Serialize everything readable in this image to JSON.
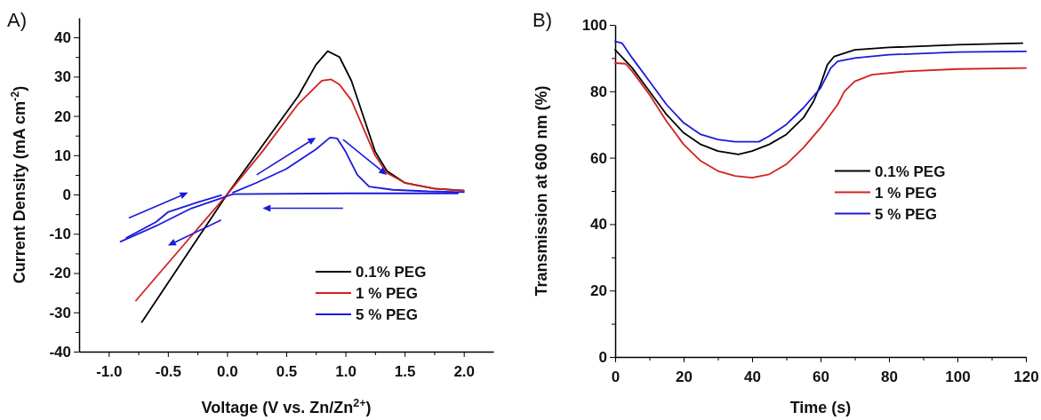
{
  "chart_data": [
    {
      "type": "line",
      "title": "A)",
      "xlabel": "Voltage (V vs. Zn/Zn$^{2+}$)",
      "ylabel": "Current Density (mA cm$^{-2}$)",
      "xlim": [
        -1.25,
        2.25
      ],
      "ylim": [
        -40,
        45
      ],
      "xticks": [
        {
          "value": -1,
          "label": "-1.0"
        },
        {
          "value": -0.75,
          "label": null
        },
        {
          "value": -0.5,
          "label": "-0.5"
        },
        {
          "value": -0.25,
          "label": null
        },
        {
          "value": 0,
          "label": "0.0"
        },
        {
          "value": 0.25,
          "label": null
        },
        {
          "value": 0.5,
          "label": "0.5"
        },
        {
          "value": 0.75,
          "label": null
        },
        {
          "value": 1,
          "label": "1.0"
        },
        {
          "value": 1.25,
          "label": null
        },
        {
          "value": 1.5,
          "label": "1.5"
        },
        {
          "value": 1.75,
          "label": null
        },
        {
          "value": 2,
          "label": "2.0"
        }
      ],
      "yticks": [
        -40,
        {
          "value": -35,
          "label": null
        },
        -30,
        {
          "value": -25,
          "label": null
        },
        -20,
        {
          "value": -15,
          "label": null
        },
        -10,
        {
          "value": -5,
          "label": null
        },
        0,
        {
          "value": 5,
          "label": null
        },
        10,
        {
          "value": 15,
          "label": null
        },
        20,
        {
          "value": 25,
          "label": null
        },
        30,
        {
          "value": 35,
          "label": null
        },
        40
      ],
      "legend": "bottom right",
      "grid": false,
      "line_style": "solid",
      "series": [
        {
          "name": "0.1% PEG",
          "color": "#000000",
          "x": [
            -0.72,
            -0.3,
            0,
            0.3,
            0.6,
            0.75,
            0.85,
            0.95,
            1.05,
            1.15,
            1.25,
            1.35,
            1.5,
            1.75,
            2.0
          ],
          "values": [
            -32.5,
            -13.5,
            0,
            12.5,
            25,
            33,
            36.5,
            35,
            29,
            20,
            11,
            6,
            3,
            1.5,
            1
          ]
        },
        {
          "name": "1 % PEG",
          "color": "#d42020",
          "x": [
            -0.77,
            -0.3,
            0,
            0.3,
            0.6,
            0.8,
            0.88,
            0.95,
            1.05,
            1.15,
            1.25,
            1.35,
            1.5,
            1.75,
            2.0
          ],
          "values": [
            -27,
            -10.5,
            0,
            11,
            23,
            29,
            29.3,
            28,
            24,
            17,
            10,
            5.5,
            3,
            1.5,
            1
          ]
        },
        {
          "name": "5 % PEG",
          "color": "#1a1adb",
          "x": [
            0.05,
            0.25,
            0.5,
            0.75,
            0.87,
            0.93,
            1.0,
            1.1,
            1.2,
            1.4,
            1.7,
            2.0
          ],
          "values": [
            0.5,
            3,
            6.5,
            11.5,
            14.5,
            14.3,
            11,
            5,
            2,
            1.2,
            0.8,
            0.6
          ]
        },
        {
          "color": "#1a1adb",
          "x": [
            1.95,
            1.0,
            0.05,
            -0.3,
            -0.6,
            -0.9
          ],
          "values": [
            0.3,
            0.3,
            0.1,
            -3.5,
            -8,
            -12
          ]
        },
        {
          "color": "#1a1adb",
          "x": [
            -0.85,
            -0.6,
            -0.5,
            -0.25,
            -0.05
          ],
          "values": [
            -11,
            -7,
            -4.5,
            -2,
            -0.2
          ]
        }
      ]
    },
    {
      "type": "line",
      "title": "B)",
      "xlabel": "Time (s)",
      "ylabel": "Transmission at 600 nm (%)",
      "xlim": [
        0,
        120
      ],
      "ylim": [
        0,
        100
      ],
      "xticks": [
        0,
        {
          "value": 10,
          "label": null
        },
        20,
        {
          "value": 30,
          "label": null
        },
        40,
        {
          "value": 50,
          "label": null
        },
        60,
        {
          "value": 70,
          "label": null
        },
        80,
        {
          "value": 90,
          "label": null
        },
        100,
        {
          "value": 110,
          "label": null
        },
        120
      ],
      "yticks": [
        0,
        {
          "value": 10,
          "label": null
        },
        20,
        {
          "value": 30,
          "label": null
        },
        40,
        {
          "value": 50,
          "label": null
        },
        60,
        {
          "value": 70,
          "label": null
        },
        80,
        {
          "value": 90,
          "label": null
        },
        100
      ],
      "legend": "right",
      "grid": false,
      "line_style": "solid",
      "series": [
        {
          "name": "0.1% PEG",
          "color": "#000000",
          "x": [
            0,
            5,
            10,
            15,
            20,
            25,
            30,
            36,
            40,
            45,
            50,
            55,
            58,
            60,
            62,
            64,
            70,
            80,
            100,
            119
          ],
          "values": [
            92.5,
            87,
            80,
            73,
            67.5,
            64,
            62,
            61,
            62,
            64,
            67,
            72,
            77,
            82,
            88,
            90.5,
            92.5,
            93.2,
            94,
            94.5
          ]
        },
        {
          "name": "1 % PEG",
          "color": "#d42020",
          "x": [
            0,
            3,
            5,
            10,
            15,
            20,
            25,
            30,
            35,
            40,
            45,
            50,
            55,
            60,
            65,
            67,
            70,
            75,
            85,
            100,
            120
          ],
          "values": [
            88.5,
            88.3,
            86,
            79,
            71,
            64,
            59,
            56,
            54.5,
            54,
            55,
            58,
            63,
            69,
            76,
            80,
            83,
            85,
            86,
            86.7,
            87
          ]
        },
        {
          "name": "5 % PEG",
          "color": "#1a1adb",
          "x": [
            0,
            2,
            5,
            10,
            15,
            20,
            25,
            30,
            35,
            42,
            45,
            50,
            55,
            60,
            63,
            65,
            70,
            80,
            100,
            120
          ],
          "values": [
            95,
            94.5,
            90,
            83,
            76,
            70.5,
            67,
            65.5,
            64.8,
            64.8,
            66.5,
            70,
            75,
            81,
            87,
            89,
            90,
            91,
            91.8,
            92
          ]
        }
      ]
    }
  ]
}
